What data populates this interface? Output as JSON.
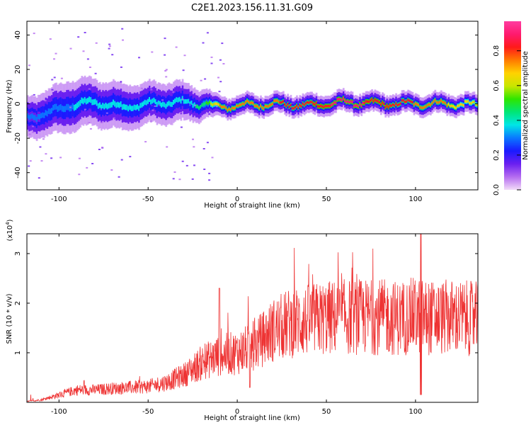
{
  "title": "C2E1.2023.156.11.31.G09",
  "chart_data": [
    {
      "type": "heatmap",
      "xlabel": "Height of straight line (km)",
      "ylabel": "Frequency (Hz)",
      "xlim": [
        -118,
        135
      ],
      "ylim": [
        -50,
        48
      ],
      "xticks": [
        -100,
        -50,
        0,
        50,
        100
      ],
      "yticks": [
        -40,
        -20,
        0,
        20,
        40
      ],
      "colorbar": {
        "label": "Normalized spectral amplitude",
        "ticks": [
          "0.0",
          "0.2",
          "0.4",
          "0.6",
          "0.8"
        ],
        "tick_values": [
          0,
          0.2,
          0.4,
          0.6,
          0.8
        ],
        "range": [
          0,
          0.97
        ],
        "colormap": [
          "#f2dcf8",
          "#b56cf0",
          "#6a1ff0",
          "#1a1aff",
          "#0a78ff",
          "#00e6e6",
          "#00e676",
          "#2ee600",
          "#c8e600",
          "#ffd200",
          "#ff7a00",
          "#ff1a1a",
          "#ff1a6e",
          "#ff3ca0"
        ]
      },
      "ridge_profile": [
        {
          "x": -118,
          "f": -8,
          "width": 8,
          "amp": 0.3
        },
        {
          "x": -105,
          "f": -5,
          "width": 9,
          "amp": 0.32
        },
        {
          "x": -95,
          "f": -1,
          "width": 10,
          "amp": 0.33
        },
        {
          "x": -80,
          "f": 1,
          "width": 9,
          "amp": 0.36
        },
        {
          "x": -65,
          "f": -2,
          "width": 9,
          "amp": 0.35
        },
        {
          "x": -50,
          "f": 0,
          "width": 8,
          "amp": 0.36
        },
        {
          "x": -35,
          "f": 1,
          "width": 8,
          "amp": 0.38
        },
        {
          "x": -20,
          "f": 0,
          "width": 6,
          "amp": 0.42
        },
        {
          "x": -10,
          "f": -2,
          "width": 4,
          "amp": 0.72
        },
        {
          "x": 0,
          "f": -1,
          "width": 4,
          "amp": 0.78
        },
        {
          "x": 20,
          "f": 0,
          "width": 4,
          "amp": 0.78
        },
        {
          "x": 40,
          "f": -1,
          "width": 4,
          "amp": 0.8
        },
        {
          "x": 60,
          "f": 1,
          "width": 4,
          "amp": 0.9
        },
        {
          "x": 80,
          "f": 0,
          "width": 4,
          "amp": 0.82
        },
        {
          "x": 100,
          "f": 0,
          "width": 4,
          "amp": 0.78
        },
        {
          "x": 120,
          "f": 0,
          "width": 4,
          "amp": 0.7
        },
        {
          "x": 135,
          "f": -1,
          "width": 4,
          "amp": 0.62
        }
      ]
    },
    {
      "type": "line",
      "xlabel": "Height of straight line (km)",
      "ylabel": "SNR (10 * v/v)",
      "y_multiplier": "(x10",
      "y_multiplier_exp": "4",
      "y_multiplier_close": ")",
      "xlim": [
        -118,
        135
      ],
      "ylim": [
        0,
        3.4
      ],
      "xticks": [
        -100,
        -50,
        0,
        50,
        100
      ],
      "yticks": [
        1,
        2,
        3
      ],
      "color": "#ee3333",
      "trend": [
        {
          "x": -118,
          "y": 0.02
        },
        {
          "x": -110,
          "y": 0.05
        },
        {
          "x": -100,
          "y": 0.15
        },
        {
          "x": -90,
          "y": 0.25
        },
        {
          "x": -80,
          "y": 0.25
        },
        {
          "x": -70,
          "y": 0.28
        },
        {
          "x": -60,
          "y": 0.3
        },
        {
          "x": -50,
          "y": 0.32
        },
        {
          "x": -40,
          "y": 0.4
        },
        {
          "x": -30,
          "y": 0.55
        },
        {
          "x": -20,
          "y": 0.8
        },
        {
          "x": -10,
          "y": 0.95
        },
        {
          "x": 0,
          "y": 1.0
        },
        {
          "x": 10,
          "y": 1.15
        },
        {
          "x": 20,
          "y": 1.45
        },
        {
          "x": 30,
          "y": 1.6
        },
        {
          "x": 40,
          "y": 1.65
        },
        {
          "x": 50,
          "y": 1.7
        },
        {
          "x": 60,
          "y": 1.72
        },
        {
          "x": 70,
          "y": 1.72
        },
        {
          "x": 80,
          "y": 1.72
        },
        {
          "x": 90,
          "y": 1.7
        },
        {
          "x": 100,
          "y": 1.75
        },
        {
          "x": 110,
          "y": 1.7
        },
        {
          "x": 120,
          "y": 1.72
        },
        {
          "x": 135,
          "y": 1.68
        }
      ],
      "notable_points": [
        {
          "x": 103,
          "y": 3.4
        },
        {
          "x": 103,
          "y": 0.15
        },
        {
          "x": -10,
          "y": 2.3
        },
        {
          "x": 7,
          "y": 0.3
        }
      ]
    }
  ]
}
